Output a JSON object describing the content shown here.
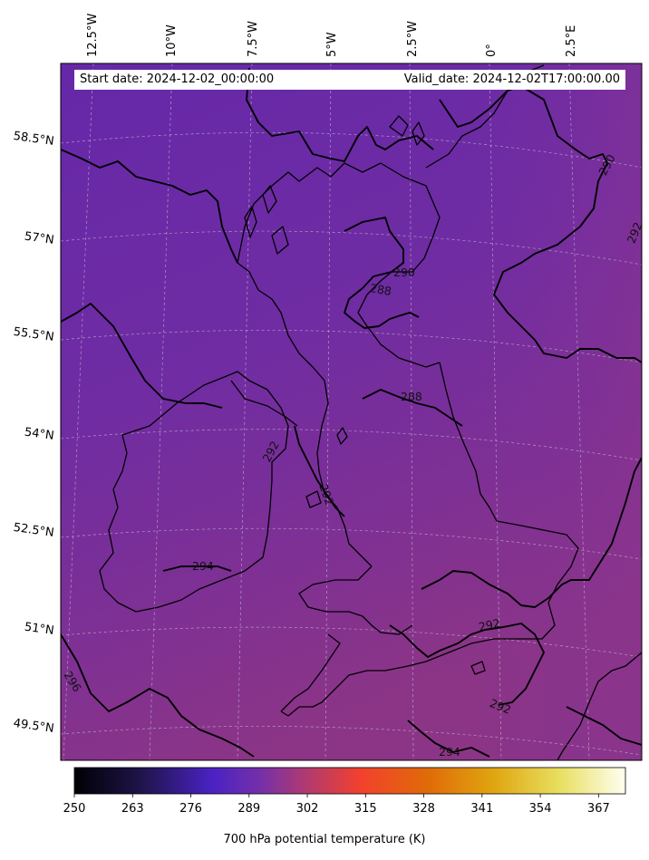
{
  "map": {
    "start_date": "Start date: 2024-12-02_00:00:00",
    "valid_date": "Valid_date: 2024-12-02T17:00:00.00",
    "longitude_labels": [
      "12.5°W",
      "10°W",
      "7.5°W",
      "5°W",
      "2.5°W",
      "0°",
      "2.5°E"
    ],
    "latitude_labels": [
      "58.5°N",
      "57°N",
      "55.5°N",
      "54°N",
      "52.5°N",
      "51°N",
      "49.5°N"
    ],
    "contour_labels": [
      "290",
      "292",
      "290",
      "288",
      "288",
      "292",
      "292",
      "294",
      "292",
      "292",
      "294",
      "296"
    ],
    "field": "700 hPa potential temperature",
    "colormap": "plasma-like (black → purple → red → orange → yellow → white)",
    "colors": {
      "field_north": "#6b2aa6",
      "field_south": "#8a3486",
      "coastline": "#000000",
      "gridline": "#c8c8d8"
    }
  },
  "colorbar": {
    "label": "700 hPa potential temperature (K)",
    "ticks": [
      "250",
      "263",
      "276",
      "289",
      "302",
      "315",
      "328",
      "341",
      "354",
      "367"
    ],
    "min": 250,
    "max": 373
  }
}
